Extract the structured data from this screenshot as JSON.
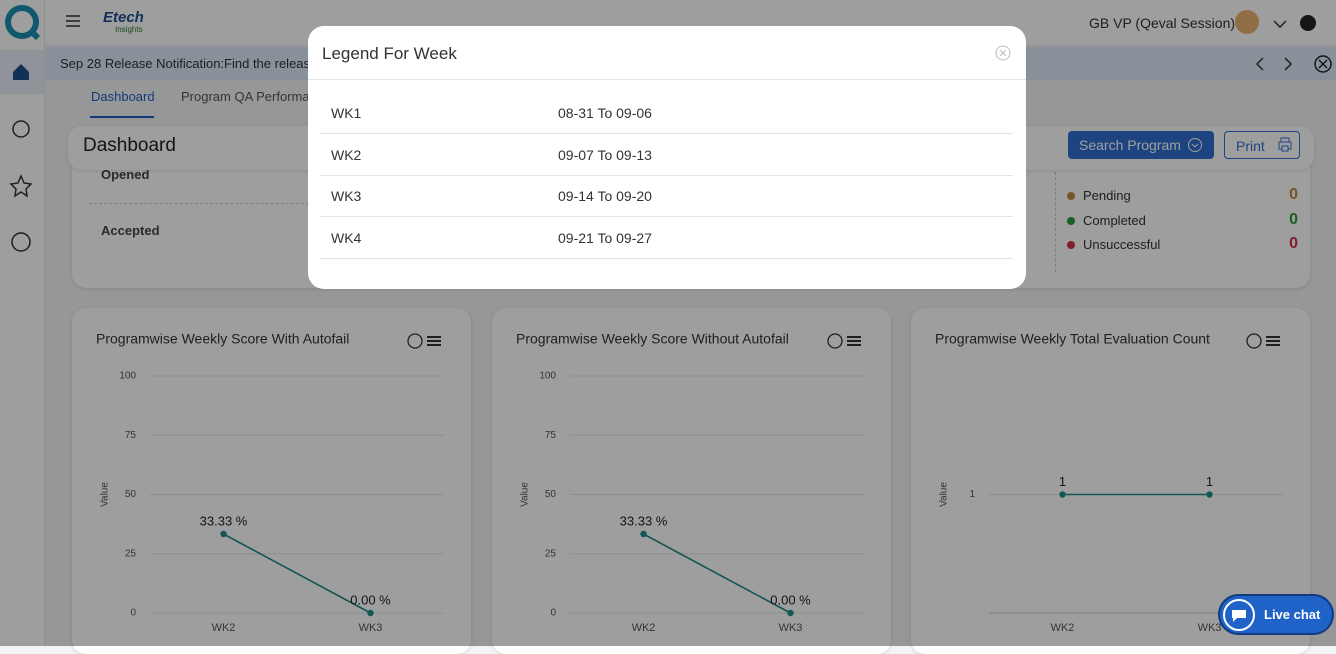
{
  "header": {
    "logo_text": "Etech",
    "logo_subtext": "Insights",
    "user": "GB VP (Qeval Session)"
  },
  "notification": "Sep 28 Release Notification:Find the releas",
  "tabs": [
    "Dashboard",
    "Program QA Performa"
  ],
  "page": {
    "title": "Dashboard",
    "search_button": "Search Program",
    "print_button": "Print"
  },
  "stats": {
    "rows": [
      "Opened",
      "Accepted"
    ],
    "statuses": [
      {
        "label": "Pending",
        "value": 0,
        "color": "#c08a3a"
      },
      {
        "label": "Completed",
        "value": 0,
        "color": "#2e9a3a"
      },
      {
        "label": "Unsuccessful",
        "value": 0,
        "color": "#d0304a"
      }
    ]
  },
  "chart_data": [
    {
      "type": "line",
      "title": "Programwise Weekly Score With Autofail",
      "y_label": "Value",
      "categories": [
        "WK2",
        "WK3"
      ],
      "values": [
        33.33,
        0
      ],
      "value_labels": [
        "33.33 %",
        "0.00 %"
      ],
      "color": "#1e8c8c",
      "ylim": [
        0,
        100
      ],
      "yticks": [
        0,
        25,
        50,
        75,
        100
      ],
      "grid": true
    },
    {
      "type": "line",
      "title": "Programwise Weekly Score Without Autofail",
      "y_label": "Value",
      "categories": [
        "WK2",
        "WK3"
      ],
      "values": [
        33.33,
        0
      ],
      "value_labels": [
        "33.33 %",
        "0.00 %"
      ],
      "color": "#1e8c8c",
      "ylim": [
        0,
        100
      ],
      "yticks": [
        0,
        25,
        50,
        75,
        100
      ],
      "grid": true
    },
    {
      "type": "line",
      "title": "Programwise Weekly Total Evaluation Count",
      "y_label": "Value",
      "categories": [
        "WK2",
        "WK3"
      ],
      "values": [
        1,
        1
      ],
      "color": "#1e8c8c",
      "ylim": [
        0,
        2
      ],
      "yticks": [
        1
      ],
      "grid": true
    }
  ],
  "modal": {
    "title": "Legend For Week",
    "rows": [
      [
        "WK1",
        "08-31 To 09-06"
      ],
      [
        "WK2",
        "09-07 To 09-13"
      ],
      [
        "WK3",
        "09-14 To 09-20"
      ],
      [
        "WK4",
        "09-21 To 09-27"
      ]
    ]
  },
  "live_chat": "Live chat"
}
